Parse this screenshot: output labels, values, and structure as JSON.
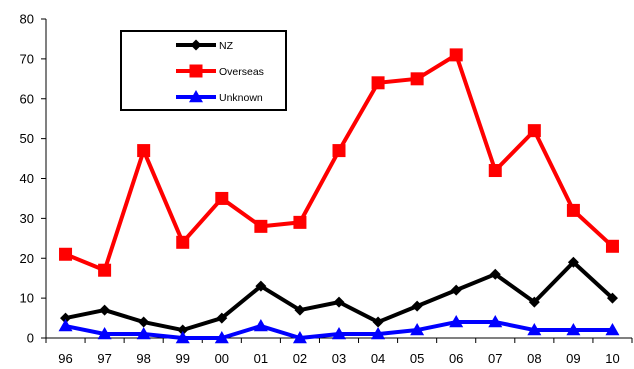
{
  "chart_data": {
    "type": "line",
    "title": "",
    "xlabel": "",
    "ylabel": "",
    "categories": [
      "96",
      "97",
      "98",
      "99",
      "00",
      "01",
      "02",
      "03",
      "04",
      "05",
      "06",
      "07",
      "08",
      "09",
      "10"
    ],
    "ylim": [
      0,
      80
    ],
    "yticks": [
      0,
      10,
      20,
      30,
      40,
      50,
      60,
      70,
      80
    ],
    "ytick_labels": [
      "0",
      "10",
      "20",
      "30",
      "40",
      "50",
      "60",
      "70",
      "80"
    ],
    "grid": false,
    "legend_position": "top-left",
    "series": [
      {
        "name": "NZ",
        "color": "#000000",
        "marker": "diamond",
        "values": [
          5,
          7,
          4,
          2,
          5,
          13,
          7,
          9,
          4,
          8,
          12,
          16,
          9,
          19,
          10
        ]
      },
      {
        "name": "Overseas",
        "color": "#ff0000",
        "marker": "square",
        "values": [
          21,
          17,
          47,
          24,
          35,
          28,
          29,
          47,
          64,
          65,
          71,
          42,
          52,
          32,
          23
        ]
      },
      {
        "name": "Unknown",
        "color": "#0000ff",
        "marker": "triangle",
        "values": [
          3,
          1,
          1,
          0,
          0,
          3,
          0,
          1,
          1,
          2,
          4,
          4,
          2,
          2,
          2
        ]
      }
    ]
  }
}
